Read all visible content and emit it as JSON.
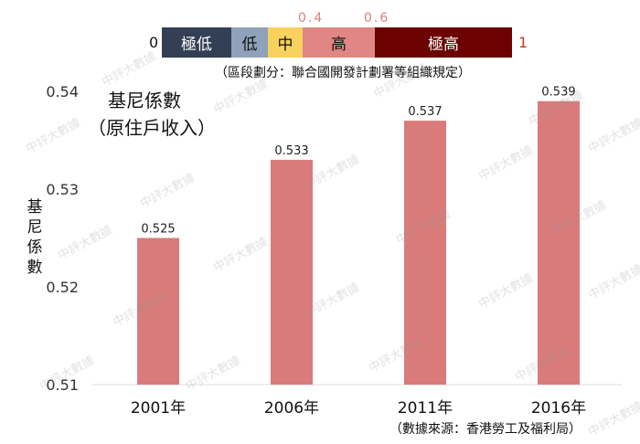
{
  "legend": {
    "min_label": "0",
    "max_label": "1",
    "threshold_labels": [
      "0.4",
      "0.6"
    ],
    "segments": [
      {
        "label": "極低",
        "color": "#323f54",
        "text_color": "#ffffff"
      },
      {
        "label": "低",
        "color": "#8fa2b9",
        "text_color": "#111111"
      },
      {
        "label": "中",
        "color": "#f7d25d",
        "text_color": "#111111"
      },
      {
        "label": "高",
        "color": "#e08684",
        "text_color": "#111111"
      },
      {
        "label": "極高",
        "color": "#6b0101",
        "text_color": "#ffffff"
      }
    ],
    "note": "（區段劃分：聯合國開發計劃署等組織規定）"
  },
  "source": "（數據來源：香港勞工及福利局）",
  "watermark": "中評大數據",
  "colors": {
    "bar": "#d97b7b",
    "grid": "#dddddd"
  },
  "chart_data": {
    "type": "bar",
    "title": "基尼係數\n（原住戶收入）",
    "ylabel": "基尼係數",
    "xlabel": "",
    "categories": [
      "2001年",
      "2006年",
      "2011年",
      "2016年"
    ],
    "values": [
      0.525,
      0.533,
      0.537,
      0.539
    ],
    "value_labels": [
      "0.525",
      "0.533",
      "0.537",
      "0.539"
    ],
    "ylim": [
      0.51,
      0.54
    ],
    "yticks": [
      "0.51",
      "0.52",
      "0.53",
      "0.54"
    ],
    "grid": false
  }
}
